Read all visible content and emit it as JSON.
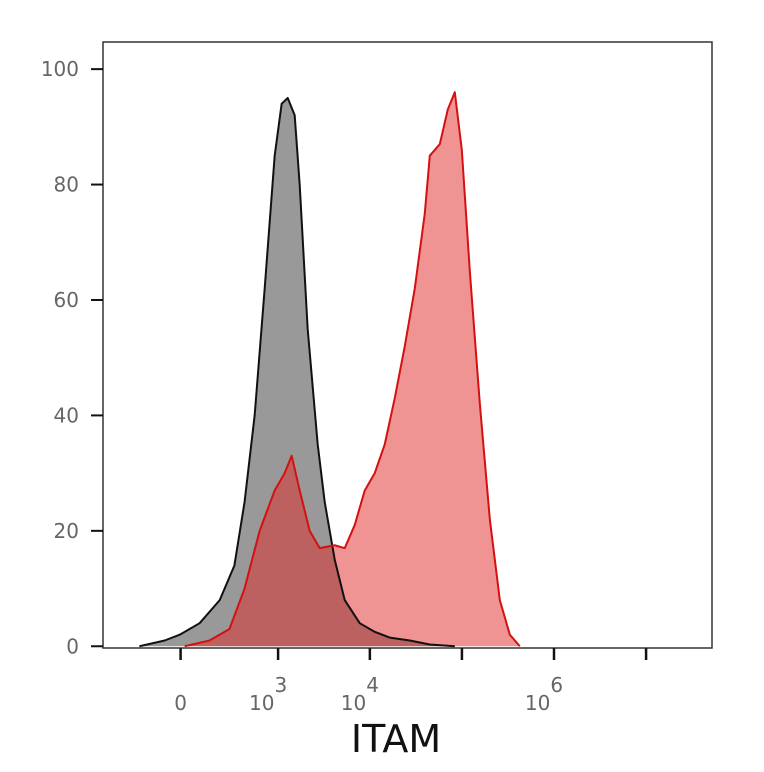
{
  "chart_data": {
    "type": "histogram-overlay",
    "x_label": "ITAM",
    "xscale": "biex",
    "xlim": [
      -600,
      52000000
    ],
    "ylim": [
      -0.3,
      104.7
    ],
    "xticks": [
      0,
      {
        "value": 1000,
        "label": "10",
        "sup": "3"
      },
      {
        "value": 10000,
        "label": "10",
        "sup": "4"
      },
      {
        "value": 100000,
        "label": null
      },
      {
        "value": 1000000,
        "label": "10",
        "sup": "6"
      },
      {
        "value": 10000000,
        "label": null
      }
    ],
    "yticks": [
      0,
      20,
      40,
      60,
      80,
      100
    ],
    "series": [
      {
        "color": "#111111",
        "fill": "#999999",
        "x": [
          -215,
          -72,
          -4,
          87,
          201,
          315,
          418,
          547,
          710,
          917,
          1095,
          1276,
          1521,
          1725,
          2108,
          2710,
          3231,
          4152,
          5333,
          7762,
          11300,
          16460,
          27150,
          44770,
          83690
        ],
        "values": [
          0,
          1,
          2,
          4,
          8,
          14,
          25,
          40,
          62,
          85,
          94,
          95,
          92,
          80,
          55,
          35,
          25,
          15,
          8,
          4,
          2.5,
          1.5,
          1,
          0.3,
          0
        ]
      },
      {
        "color": "#d41010",
        "fill": "rgba(226,40,40,0.5)",
        "x": [
          18,
          139,
          273,
          418,
          623,
          917,
          1181,
          1410,
          1725,
          2218,
          2850,
          4152,
          5333,
          6846,
          8800,
          11300,
          14520,
          18650,
          23950,
          30760,
          39510,
          44770,
          57500,
          70220,
          83690,
          99700,
          121800,
          156500,
          200900,
          258000,
          331400,
          425400
        ],
        "values": [
          0,
          1,
          3,
          10,
          20,
          27,
          30,
          33,
          27,
          20,
          17,
          17.5,
          17,
          21,
          27,
          30,
          35,
          43,
          52,
          62,
          75,
          85,
          87,
          93,
          96,
          86,
          65,
          42,
          22,
          8,
          2,
          0
        ]
      }
    ]
  }
}
